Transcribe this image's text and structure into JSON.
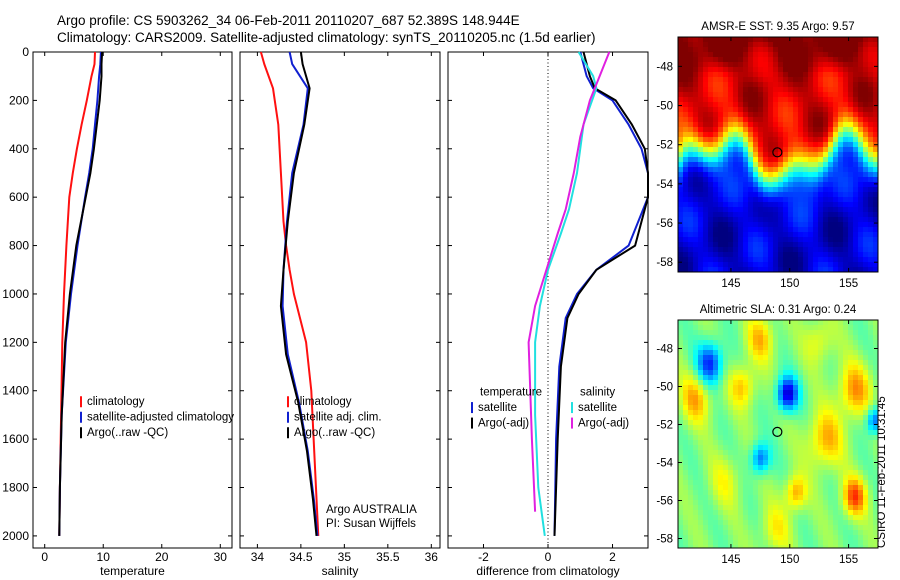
{
  "header": {
    "line1": "Argo profile: CS 5903262_34 06-Feb-2011 20110207_687 52.389S 148.944E",
    "line2": "Climatology: CARS2009. Satellite-adjusted climatology: synTS_20110205.nc (1.5d earlier)"
  },
  "side_stamp": "CSIRO 11-Feb-2011 10:31:45",
  "colors": {
    "red": "#ff1010",
    "blue": "#1020d0",
    "black": "#000000",
    "cyan": "#20e0e0",
    "magenta": "#e020e0"
  },
  "chart_data": [
    {
      "type": "line",
      "panel": "temperature",
      "xlabel": "temperature",
      "ylabel": "",
      "xlim": [
        -2,
        32
      ],
      "ylim": [
        2050,
        0
      ],
      "xticks": [
        0,
        10,
        20,
        30
      ],
      "yticks": [
        0,
        200,
        400,
        600,
        800,
        1000,
        1200,
        1400,
        1600,
        1800,
        2000
      ],
      "legend": [
        "climatology",
        "satellite-adjusted climatology",
        "Argo(..raw -QC)"
      ],
      "legend_position": "bottom-right",
      "series": [
        {
          "name": "climatology",
          "color": "red",
          "x": [
            8.6,
            8.5,
            8.0,
            7.2,
            6.3,
            5.5,
            4.8,
            4.2,
            3.7,
            3.3,
            3.0,
            2.8,
            2.6,
            2.5
          ],
          "y": [
            0,
            50,
            100,
            200,
            300,
            400,
            500,
            600,
            800,
            1000,
            1200,
            1500,
            1800,
            2000
          ]
        },
        {
          "name": "satellite-adjusted climatology",
          "color": "blue",
          "x": [
            9.6,
            9.5,
            9.3,
            9.0,
            8.6,
            8.2,
            7.6,
            6.9,
            5.6,
            4.5,
            3.6,
            2.9,
            2.6,
            2.5
          ],
          "y": [
            0,
            50,
            100,
            200,
            300,
            400,
            500,
            600,
            800,
            1000,
            1200,
            1500,
            1800,
            2000
          ]
        },
        {
          "name": "Argo(..raw -QC)",
          "color": "black",
          "x": [
            9.8,
            9.7,
            9.7,
            9.4,
            8.9,
            8.4,
            7.8,
            7.0,
            5.4,
            4.3,
            3.5,
            2.9,
            2.6,
            2.5
          ],
          "y": [
            0,
            50,
            100,
            200,
            300,
            400,
            500,
            600,
            800,
            1000,
            1200,
            1500,
            1800,
            2000
          ]
        }
      ]
    },
    {
      "type": "line",
      "panel": "salinity",
      "xlabel": "salinity",
      "ylabel": "",
      "xlim": [
        33.8,
        36.1
      ],
      "ylim": [
        2050,
        0
      ],
      "xticks": [
        34,
        34.5,
        35,
        35.5,
        36
      ],
      "yticks": [
        0,
        200,
        400,
        600,
        800,
        1000,
        1200,
        1400,
        1600,
        1800,
        2000
      ],
      "legend": [
        "climatology",
        "satellite adj. clim.",
        "Argo(..raw -QC)"
      ],
      "legend_position": "bottom-right",
      "annotation_lines": [
        "Argo AUSTRALIA",
        "PI: Susan Wijffels"
      ],
      "series": [
        {
          "name": "climatology",
          "color": "red",
          "x": [
            34.04,
            34.08,
            34.18,
            34.24,
            34.27,
            34.3,
            34.33,
            34.37,
            34.42,
            34.49,
            34.56,
            34.62,
            34.66,
            34.7
          ],
          "y": [
            0,
            50,
            150,
            300,
            500,
            700,
            800,
            900,
            1000,
            1100,
            1200,
            1400,
            1700,
            2000
          ]
        },
        {
          "name": "satellite adj. clim.",
          "color": "blue",
          "x": [
            34.37,
            34.4,
            34.58,
            34.53,
            34.4,
            34.34,
            34.3,
            34.29,
            34.35,
            34.48,
            34.58,
            34.65,
            34.69
          ],
          "y": [
            0,
            50,
            150,
            300,
            500,
            700,
            900,
            1050,
            1250,
            1450,
            1650,
            1850,
            2000
          ]
        },
        {
          "name": "Argo(..raw -QC)",
          "color": "black",
          "x": [
            34.5,
            34.52,
            34.6,
            34.54,
            34.42,
            34.35,
            34.3,
            34.27,
            34.33,
            34.47,
            34.57,
            34.64,
            34.68
          ],
          "y": [
            0,
            50,
            150,
            300,
            500,
            700,
            900,
            1050,
            1250,
            1450,
            1650,
            1850,
            2000
          ]
        }
      ]
    },
    {
      "type": "line",
      "panel": "difference",
      "xlabel": "difference from climatology",
      "ylabel": "",
      "xlim": [
        -3.1,
        3.1
      ],
      "ylim": [
        2050,
        0
      ],
      "xticks": [
        -2,
        0,
        2
      ],
      "yticks": [
        0,
        200,
        400,
        600,
        800,
        1000,
        1200,
        1400,
        1600,
        1800,
        2000
      ],
      "legend_groups": [
        {
          "header": "temperature",
          "items": [
            "satellite",
            "Argo(-adj)"
          ]
        },
        {
          "header": "salinity",
          "items": [
            "satellite",
            "Argo(-adj)"
          ]
        }
      ],
      "legend_position": "bottom",
      "series": [
        {
          "name": "temperature satellite",
          "color": "blue",
          "x": [
            1.0,
            1.2,
            1.4,
            2.0,
            2.5,
            2.9,
            3.1,
            3.1,
            2.5,
            1.5,
            0.9,
            0.55,
            0.35,
            0.25,
            0.2
          ],
          "y": [
            0,
            100,
            150,
            200,
            300,
            400,
            500,
            600,
            800,
            900,
            1000,
            1100,
            1300,
            1600,
            2000
          ]
        },
        {
          "name": "temperature Argo(-adj)",
          "color": "black",
          "x": [
            1.1,
            1.3,
            1.45,
            2.1,
            2.6,
            3.0,
            3.1,
            3.1,
            2.7,
            1.5,
            0.95,
            0.6,
            0.4,
            0.3,
            0.2
          ],
          "y": [
            0,
            100,
            150,
            200,
            300,
            400,
            500,
            600,
            800,
            900,
            1000,
            1100,
            1300,
            1600,
            2000
          ]
        },
        {
          "name": "salinity satellite",
          "color": "cyan",
          "x": [
            0.95,
            1.4,
            1.5,
            1.1,
            0.9,
            0.65,
            0.4,
            0.0,
            -0.25,
            -0.4,
            -0.4,
            -0.3,
            -0.1
          ],
          "y": [
            0,
            100,
            150,
            300,
            500,
            650,
            750,
            900,
            1050,
            1200,
            1500,
            1800,
            2000
          ]
        },
        {
          "name": "salinity Argo(-adj)",
          "color": "magenta",
          "x": [
            1.9,
            1.6,
            1.3,
            1.0,
            0.8,
            0.55,
            0.3,
            -0.05,
            -0.4,
            -0.6,
            -0.5,
            -0.4
          ],
          "y": [
            0,
            100,
            200,
            350,
            500,
            650,
            750,
            900,
            1050,
            1200,
            1600,
            1900
          ]
        }
      ]
    },
    {
      "type": "heatmap",
      "panel": "sst_map",
      "title": "AMSR-E SST: 9.35 Argo: 9.57",
      "xlim": [
        140.5,
        157.5
      ],
      "ylim": [
        -58.5,
        -46.5
      ],
      "xticks": [
        145,
        150,
        155
      ],
      "yticks": [
        -48,
        -50,
        -52,
        -54,
        -56,
        -58
      ],
      "marker": {
        "lon": 148.944,
        "lat": -52.389
      }
    },
    {
      "type": "heatmap",
      "panel": "sla_map",
      "title": "Altimetric SLA: 0.31 Argo: 0.24",
      "xlim": [
        140.5,
        157.5
      ],
      "ylim": [
        -58.5,
        -46.5
      ],
      "xticks": [
        145,
        150,
        155
      ],
      "yticks": [
        -48,
        -50,
        -52,
        -54,
        -56,
        -58
      ],
      "marker": {
        "lon": 148.944,
        "lat": -52.389
      }
    }
  ]
}
